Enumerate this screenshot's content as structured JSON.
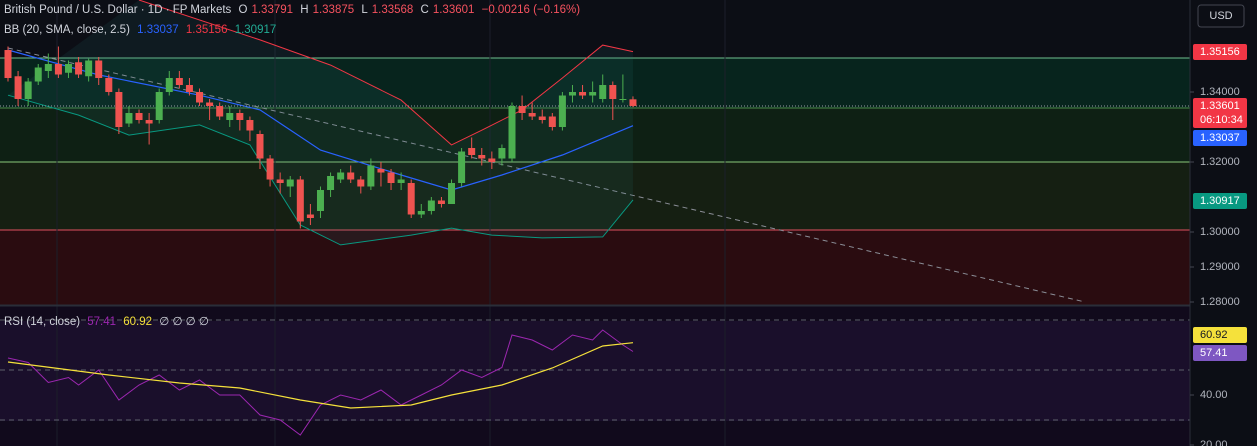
{
  "chart_data": {
    "type": "candlestick",
    "title": "British Pound / U.S. Dollar · 1D · FP Markets",
    "ohlc_labels": [
      "O",
      "H",
      "L",
      "C"
    ],
    "change": "−0.00216 (−0.16%)",
    "currency": "USD",
    "countdown": "06:10:34",
    "up_color": "#4caf50",
    "down_color": "#ef5350",
    "open": [
      1.352,
      1.3445,
      1.338,
      1.343,
      1.346,
      1.348,
      1.3455,
      1.3485,
      1.3445,
      1.349,
      1.344,
      1.34,
      1.331,
      1.334,
      1.332,
      1.332,
      1.34,
      1.344,
      1.342,
      1.34,
      1.337,
      1.336,
      1.332,
      1.334,
      1.332,
      1.328,
      1.321,
      1.315,
      1.313,
      1.315,
      1.305,
      1.306,
      1.312,
      1.315,
      1.317,
      1.315,
      1.313,
      1.318,
      1.317,
      1.314,
      1.314,
      1.305,
      1.306,
      1.309,
      1.308,
      1.314,
      1.324,
      1.322,
      1.321,
      1.321,
      1.321,
      1.336,
      1.334,
      1.333,
      1.333,
      1.33,
      1.339,
      1.34,
      1.339,
      1.338,
      1.342,
      1.338,
      1.33791
    ],
    "high": [
      1.353,
      1.346,
      1.344,
      1.348,
      1.351,
      1.353,
      1.349,
      1.35,
      1.3495,
      1.35,
      1.345,
      1.341,
      1.336,
      1.335,
      1.334,
      1.341,
      1.346,
      1.346,
      1.344,
      1.341,
      1.338,
      1.337,
      1.336,
      1.335,
      1.333,
      1.329,
      1.322,
      1.317,
      1.316,
      1.316,
      1.308,
      1.313,
      1.317,
      1.318,
      1.319,
      1.316,
      1.321,
      1.32,
      1.318,
      1.317,
      1.315,
      1.308,
      1.31,
      1.31,
      1.315,
      1.324,
      1.327,
      1.324,
      1.323,
      1.325,
      1.337,
      1.339,
      1.337,
      1.335,
      1.334,
      1.34,
      1.342,
      1.342,
      1.343,
      1.345,
      1.343,
      1.345,
      1.33875
    ],
    "low": [
      1.343,
      1.336,
      1.336,
      1.342,
      1.344,
      1.344,
      1.344,
      1.344,
      1.343,
      1.342,
      1.339,
      1.328,
      1.33,
      1.331,
      1.325,
      1.331,
      1.339,
      1.341,
      1.339,
      1.336,
      1.332,
      1.332,
      1.33,
      1.329,
      1.326,
      1.318,
      1.313,
      1.311,
      1.31,
      1.301,
      1.302,
      1.304,
      1.31,
      1.314,
      1.314,
      1.311,
      1.312,
      1.313,
      1.312,
      1.312,
      1.304,
      1.304,
      1.305,
      1.307,
      1.308,
      1.313,
      1.321,
      1.319,
      1.318,
      1.319,
      1.32,
      1.332,
      1.332,
      1.331,
      1.329,
      1.329,
      1.337,
      1.338,
      1.337,
      1.337,
      1.332,
      1.337,
      1.33568
    ],
    "close": [
      1.344,
      1.338,
      1.343,
      1.347,
      1.348,
      1.345,
      1.348,
      1.345,
      1.349,
      1.344,
      1.34,
      1.33,
      1.334,
      1.332,
      1.331,
      1.34,
      1.344,
      1.342,
      1.34,
      1.337,
      1.336,
      1.333,
      1.334,
      1.332,
      1.329,
      1.321,
      1.315,
      1.314,
      1.315,
      1.303,
      1.304,
      1.312,
      1.316,
      1.317,
      1.315,
      1.313,
      1.319,
      1.317,
      1.314,
      1.315,
      1.305,
      1.306,
      1.309,
      1.308,
      1.314,
      1.323,
      1.322,
      1.321,
      1.32,
      1.324,
      1.336,
      1.334,
      1.333,
      1.332,
      1.33,
      1.339,
      1.34,
      1.339,
      1.34,
      1.342,
      1.338,
      1.338,
      1.33601
    ],
    "ylim": [
      1.27914,
      1.36629
    ],
    "yticks": [
      {
        "value": 1.34,
        "label": "1.34000"
      },
      {
        "value": 1.32,
        "label": "1.32000"
      },
      {
        "value": 1.3,
        "label": "1.30000"
      },
      {
        "value": 1.29,
        "label": "1.29000"
      },
      {
        "value": 1.28,
        "label": "1.28000"
      }
    ],
    "bollinger": {
      "label": "BB (20, SMA, close, 2.5)",
      "basis": {
        "color": "#2962ff",
        "x": [
          0,
          9,
          19,
          25,
          31,
          39,
          44,
          49,
          55,
          62
        ],
        "values": [
          1.352,
          1.3449,
          1.3391,
          1.3349,
          1.3234,
          1.3163,
          1.312,
          1.3163,
          1.322,
          1.33037
        ]
      },
      "upper": {
        "color": "#f23645",
        "x": [
          13,
          25,
          32,
          39,
          44,
          47,
          51,
          55,
          59,
          62
        ],
        "values": [
          1.3663,
          1.3549,
          1.3477,
          1.3377,
          1.3249,
          1.3291,
          1.3349,
          1.344,
          1.3534,
          1.35156
        ]
      },
      "lower": {
        "color": "#089981",
        "x": [
          0,
          7,
          12,
          19,
          24,
          29,
          33,
          40,
          44,
          48,
          53,
          59,
          62
        ],
        "values": [
          1.3391,
          1.3334,
          1.3277,
          1.3306,
          1.3249,
          1.302,
          1.2963,
          1.2991,
          1.3011,
          1.2991,
          1.2983,
          1.2986,
          1.30917
        ]
      }
    },
    "rsi": {
      "label": "RSI (14, close)",
      "extra": "∅ ∅ ∅ ∅",
      "ylim": [
        19.6,
        75.6
      ],
      "yticks": [
        {
          "value": 40,
          "label": "40.00"
        },
        {
          "value": 20,
          "label": "20.00"
        }
      ],
      "levels": [
        70,
        50,
        30
      ],
      "series": [
        {
          "color": "#9c27b0",
          "x": [
            0,
            2,
            4,
            6,
            7,
            9,
            11,
            13,
            15,
            17,
            19,
            21,
            23,
            25,
            27,
            29,
            31,
            33,
            35,
            37,
            39,
            41,
            43,
            45,
            47,
            49,
            50,
            52,
            54,
            56,
            58,
            59,
            61,
            62
          ],
          "values": [
            54.8,
            53,
            45,
            47,
            44,
            50,
            38,
            44,
            48,
            42,
            46,
            40,
            40,
            32,
            30,
            24,
            36,
            40,
            38,
            42,
            36,
            40,
            44,
            50,
            47,
            51,
            64,
            62,
            58,
            64,
            62,
            66,
            60,
            57.41
          ]
        },
        {
          "color": "#f5e13b",
          "x": [
            0,
            10,
            17,
            23,
            29,
            34,
            40,
            44,
            49,
            54,
            59,
            62
          ],
          "values": [
            53.2,
            48,
            44.8,
            42.8,
            38,
            34.8,
            36,
            40,
            44,
            50.8,
            59.6,
            60.92
          ]
        }
      ]
    }
  }
}
